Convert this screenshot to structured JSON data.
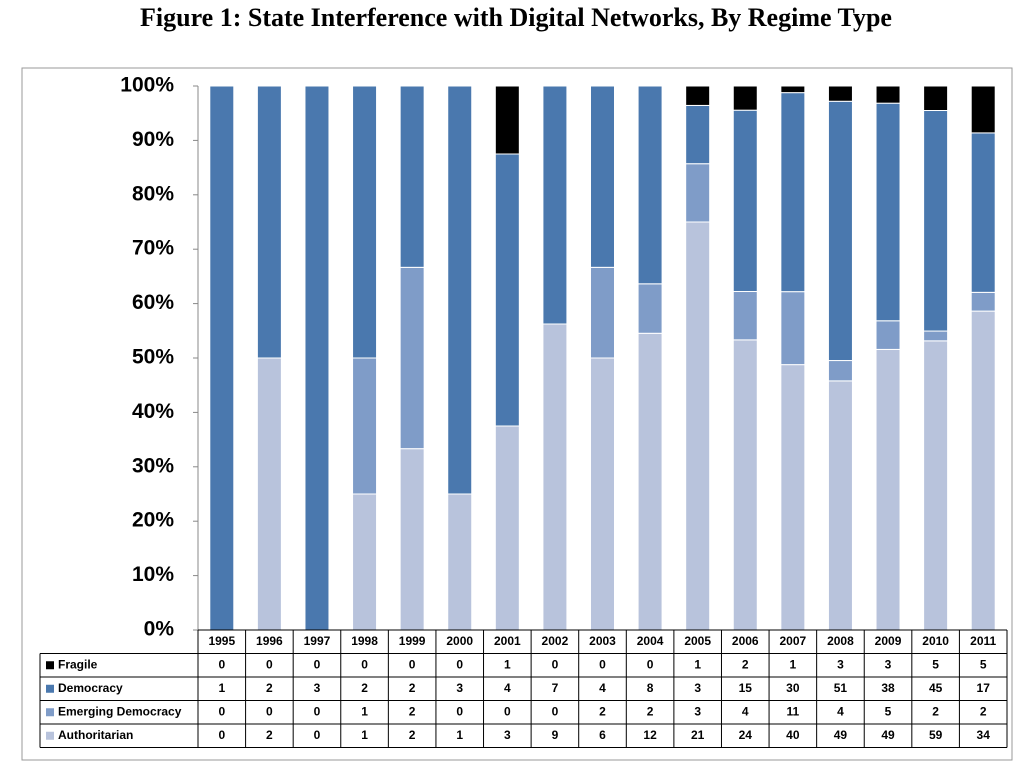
{
  "chart_data": {
    "type": "bar",
    "stacking": "percent",
    "title": "Figure 1:  State Interference with Digital Networks, By Regime Type",
    "categories": [
      "1995",
      "1996",
      "1997",
      "1998",
      "1999",
      "2000",
      "2001",
      "2002",
      "2003",
      "2004",
      "2005",
      "2006",
      "2007",
      "2008",
      "2009",
      "2010",
      "2011"
    ],
    "series": [
      {
        "name": "Fragile",
        "color": "#000000",
        "values": [
          0,
          0,
          0,
          0,
          0,
          0,
          1,
          0,
          0,
          0,
          1,
          2,
          1,
          3,
          3,
          5,
          5
        ]
      },
      {
        "name": "Democracy",
        "color": "#4a78ae",
        "values": [
          1,
          2,
          3,
          2,
          2,
          3,
          4,
          7,
          4,
          8,
          3,
          15,
          30,
          51,
          38,
          45,
          17
        ]
      },
      {
        "name": "Emerging Democracy",
        "color": "#7f9cc8",
        "values": [
          0,
          0,
          0,
          1,
          2,
          0,
          0,
          0,
          2,
          2,
          3,
          4,
          11,
          4,
          5,
          2,
          2
        ]
      },
      {
        "name": "Authoritarian",
        "color": "#b8c3dc",
        "values": [
          0,
          2,
          0,
          1,
          2,
          1,
          3,
          9,
          6,
          12,
          21,
          24,
          40,
          49,
          49,
          59,
          34
        ]
      }
    ],
    "ylim": [
      0,
      100
    ],
    "yticks": [
      {
        "value": 0,
        "label": "0%"
      },
      {
        "value": 10,
        "label": "10%"
      },
      {
        "value": 20,
        "label": "20%"
      },
      {
        "value": 30,
        "label": "30%"
      },
      {
        "value": 40,
        "label": "40%"
      },
      {
        "value": 50,
        "label": "50%"
      },
      {
        "value": 60,
        "label": "60%"
      },
      {
        "value": 70,
        "label": "70%"
      },
      {
        "value": 80,
        "label": "80%"
      },
      {
        "value": 90,
        "label": "90%"
      },
      {
        "value": 100,
        "label": "100%"
      }
    ],
    "grid": false
  }
}
